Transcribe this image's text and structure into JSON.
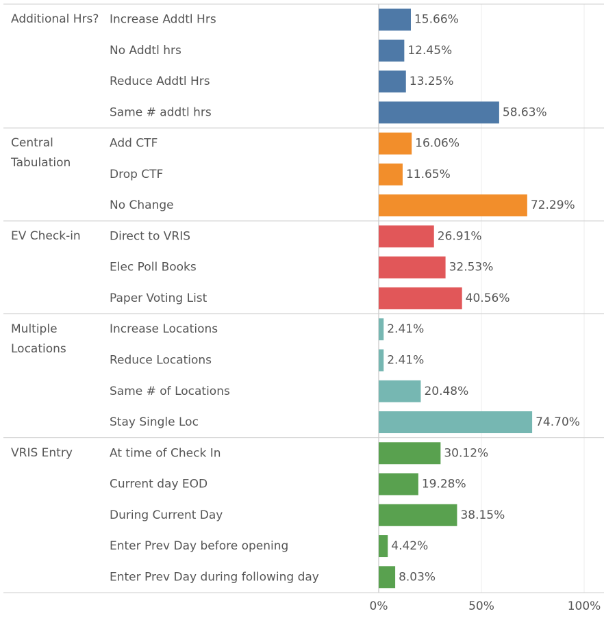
{
  "chart_data": {
    "type": "bar",
    "xlim": [
      0,
      100
    ],
    "xticks": [
      {
        "value": 0,
        "label": "0%"
      },
      {
        "value": 50,
        "label": "50%"
      },
      {
        "value": 100,
        "label": "100%"
      }
    ],
    "grid": true,
    "groups": [
      {
        "name": "Additional Hrs?",
        "color": "#4e79a7",
        "categories": [
          "Increase Addtl Hrs",
          "No Addtl hrs",
          "Reduce Addtl Hrs",
          "Same # addtl hrs"
        ],
        "values": [
          15.66,
          12.45,
          13.25,
          58.63
        ],
        "value_labels": [
          "15.66%",
          "12.45%",
          "13.25%",
          "58.63%"
        ]
      },
      {
        "name": "Central Tabulation",
        "color": "#f28e2b",
        "categories": [
          "Add CTF",
          "Drop CTF",
          "No Change"
        ],
        "values": [
          16.06,
          11.65,
          72.29
        ],
        "value_labels": [
          "16.06%",
          "11.65%",
          "72.29%"
        ]
      },
      {
        "name": "EV Check-in",
        "color": "#e15759",
        "categories": [
          "Direct to VRIS",
          "Elec Poll Books",
          "Paper Voting List"
        ],
        "values": [
          26.91,
          32.53,
          40.56
        ],
        "value_labels": [
          "26.91%",
          "32.53%",
          "40.56%"
        ]
      },
      {
        "name": "Multiple Locations",
        "color": "#76b7b2",
        "categories": [
          "Increase Locations",
          "Reduce Locations",
          "Same # of Locations",
          "Stay Single Loc"
        ],
        "values": [
          2.41,
          2.41,
          20.48,
          74.7
        ],
        "value_labels": [
          "2.41%",
          "2.41%",
          "20.48%",
          "74.70%"
        ]
      },
      {
        "name": "VRIS Entry",
        "color": "#59a14f",
        "categories": [
          "At time of Check In",
          "Current day EOD",
          "During Current Day",
          "Enter Prev Day before opening",
          "Enter Prev Day during following day"
        ],
        "values": [
          30.12,
          19.28,
          38.15,
          4.42,
          8.03
        ],
        "value_labels": [
          "30.12%",
          "19.28%",
          "38.15%",
          "4.42%",
          "8.03%"
        ]
      }
    ]
  }
}
